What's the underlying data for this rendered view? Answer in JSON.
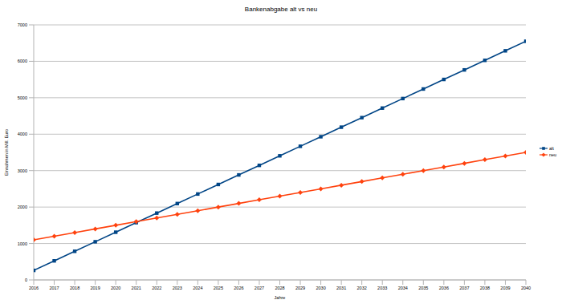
{
  "chart_data": {
    "type": "line",
    "title": "Bankenabgabe alt vs neu",
    "x_label": "Jahre",
    "y_label": "Einnahmen in Mill. Euro",
    "x": [
      2016,
      2017,
      2018,
      2019,
      2020,
      2021,
      2022,
      2023,
      2024,
      2025,
      2026,
      2027,
      2028,
      2029,
      2030,
      2031,
      2032,
      2033,
      2034,
      2035,
      2036,
      2037,
      2038,
      2039,
      2040
    ],
    "xlim": [
      2016,
      2040
    ],
    "xticks": [
      2016,
      2017,
      2018,
      2019,
      2020,
      2021,
      2022,
      2023,
      2024,
      2025,
      2026,
      2027,
      2028,
      2029,
      2030,
      2031,
      2032,
      2033,
      2034,
      2035,
      2036,
      2037,
      2038,
      2039,
      2040
    ],
    "ylim": [
      0,
      7000
    ],
    "yticks": [
      0,
      1000,
      2000,
      3000,
      4000,
      5000,
      6000,
      7000
    ],
    "grid": true,
    "legend": "right",
    "series": [
      {
        "name": "alt",
        "color": "#004586",
        "marker": "square",
        "values": [
          262,
          524,
          786,
          1048,
          1310,
          1572,
          1834,
          2096,
          2358,
          2620,
          2882,
          3144,
          3406,
          3668,
          3930,
          4192,
          4454,
          4716,
          4978,
          5240,
          5502,
          5764,
          6026,
          6288,
          6550
        ]
      },
      {
        "name": "neu",
        "color": "#ff420e",
        "marker": "diamond",
        "values": [
          1100,
          1200,
          1300,
          1400,
          1500,
          1600,
          1700,
          1800,
          1900,
          2000,
          2100,
          2200,
          2300,
          2400,
          2500,
          2600,
          2700,
          2800,
          2900,
          3000,
          3100,
          3200,
          3300,
          3400,
          3500
        ]
      }
    ]
  }
}
